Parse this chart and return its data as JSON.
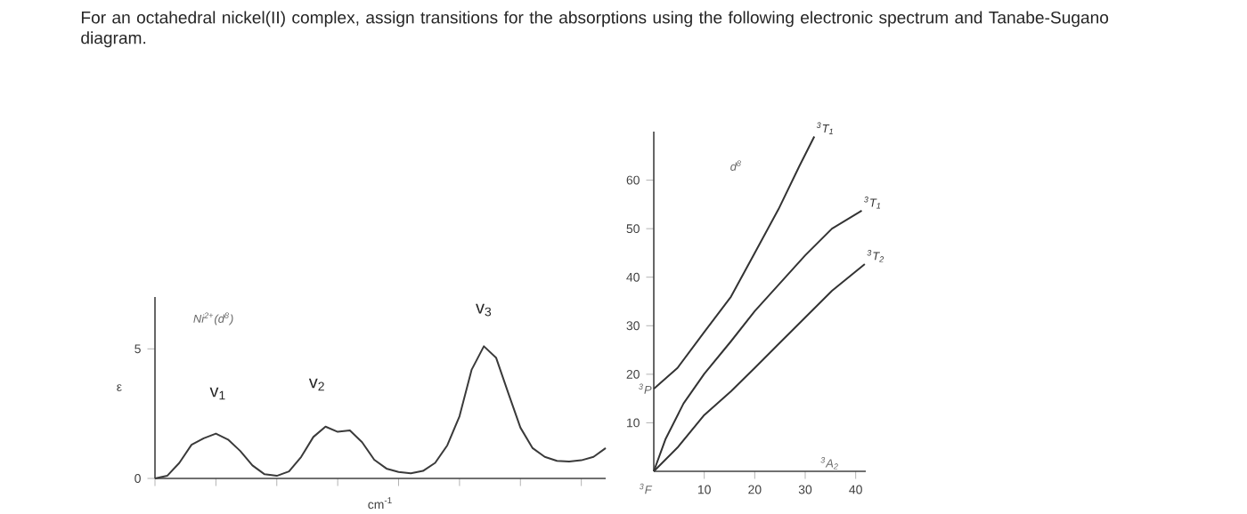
{
  "chart_data": [
    {
      "type": "line",
      "title": "For an octahedral nickel(II) complex, assign transitions for the absorptions using the following electronic spectrum and Tanabe-Sugano diagram.",
      "xlabel": "cm$^{-1}$",
      "ylabel": "ε",
      "ylim": [
        0,
        7
      ],
      "yticks": [
        0,
        5
      ],
      "grid": false,
      "legend": false,
      "marker": "none",
      "line_style": "solid",
      "categories": [
        null,
        null,
        null,
        null,
        null,
        null,
        null,
        null,
        null,
        null,
        null,
        null,
        null,
        null,
        null,
        null,
        null,
        null,
        null,
        null,
        null,
        null,
        null,
        null,
        null,
        null,
        null,
        null,
        null,
        null,
        null,
        null,
        null,
        null,
        null,
        null,
        null,
        null
      ],
      "series": [
        {
          "color": "#3a3a3a",
          "values": [
            0,
            0.1,
            0.6,
            1.3,
            1.55,
            1.73,
            1.5,
            1.06,
            0.5,
            0.16,
            0.1,
            0.27,
            0.83,
            1.6,
            2.0,
            1.8,
            1.85,
            1.4,
            0.72,
            0.38,
            0.25,
            0.2,
            0.29,
            0.6,
            1.28,
            2.4,
            4.2,
            5.1,
            4.66,
            3.3,
            1.96,
            1.17,
            0.83,
            0.68,
            0.65,
            0.7,
            0.83,
            1.17
          ]
        }
      ],
      "annotations": [
        "Ni$^{2+}$(d$^{8}$)",
        "v$_{1}$",
        "v$_{2}$",
        "v$_{3}$"
      ]
    },
    {
      "type": "line",
      "xlim": [
        0,
        42
      ],
      "ylim": [
        0,
        70
      ],
      "xticks": [
        10,
        20,
        30,
        40
      ],
      "yticks": [
        10,
        20,
        30,
        40,
        50,
        60
      ],
      "grid": false,
      "legend": false,
      "marker": "none",
      "line_style": "solid",
      "series": [
        {
          "name": "$^{3}$T$_{1}$",
          "color": "#333333",
          "x": [
            0,
            4.7,
            10,
            15.3,
            20,
            24.7,
            28.8,
            31.8
          ],
          "values": [
            17,
            21.3,
            28.7,
            36,
            45,
            54,
            62.8,
            69
          ]
        },
        {
          "name": "$^{3}$T$_{1}$",
          "color": "#333333",
          "x": [
            0,
            2.35,
            5.9,
            10,
            15.3,
            20,
            24.7,
            30,
            35.3,
            41.2
          ],
          "values": [
            0,
            6.7,
            14,
            20.1,
            26.8,
            33,
            38.4,
            44.5,
            50,
            53.7
          ]
        },
        {
          "name": "$^{3}$T$_{2}$",
          "color": "#333333",
          "x": [
            0,
            4.7,
            10,
            15.3,
            20,
            24.7,
            30,
            35.3,
            41.8
          ],
          "values": [
            0,
            4.9,
            11.6,
            16.5,
            21.3,
            26.2,
            31.7,
            37.2,
            42.7
          ]
        }
      ],
      "annotations": [
        "d$^{8}$",
        "$^{3}$F",
        "$^{3}$P",
        "$^{3}$A$_{2}$"
      ]
    }
  ]
}
